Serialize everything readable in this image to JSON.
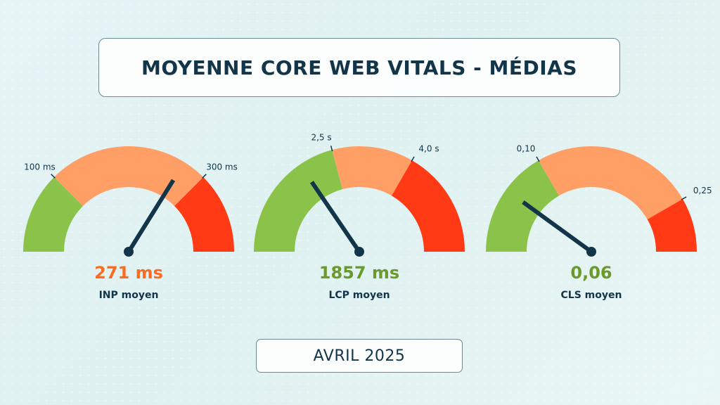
{
  "title": "MOYENNE CORE WEB VITALS - MÉDIAS",
  "period": "AVRIL 2025",
  "colors": {
    "good": "#8bc34a",
    "needs_improvement": "#ff9f66",
    "poor": "#ff3a14",
    "needle": "#12354a",
    "title_text": "#12354a"
  },
  "chart_data": [
    {
      "type": "gauge",
      "label": "INP moyen",
      "value": 271,
      "value_text": "271 ms",
      "value_color": "#ff6a1f",
      "range": [
        0,
        400
      ],
      "thresholds": [
        100,
        300
      ],
      "threshold_labels": [
        "100 ms",
        "300 ms"
      ],
      "zones": [
        "good",
        "needs_improvement",
        "poor"
      ]
    },
    {
      "type": "gauge",
      "label": "LCP moyen",
      "value": 1857,
      "value_text": "1857 ms",
      "value_color": "#6b9a2c",
      "range": [
        0,
        6000
      ],
      "thresholds": [
        2500,
        4000
      ],
      "threshold_labels": [
        "2,5 s",
        "4,0 s"
      ],
      "zones": [
        "good",
        "needs_improvement",
        "poor"
      ]
    },
    {
      "type": "gauge",
      "label": "CLS moyen",
      "value": 0.06,
      "value_text": "0,06",
      "value_color": "#6b9a2c",
      "range": [
        0,
        0.3
      ],
      "thresholds": [
        0.1,
        0.25
      ],
      "threshold_labels": [
        "0,10",
        "0,25"
      ],
      "zones": [
        "good",
        "needs_improvement",
        "poor"
      ]
    }
  ]
}
